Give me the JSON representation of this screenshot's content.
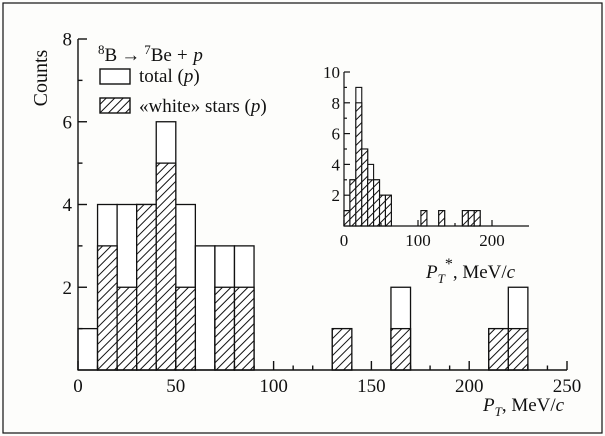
{
  "chart_data": [
    {
      "type": "histogram",
      "reaction": {
        "b_mass": "8",
        "b_sym": "B",
        "arrow": "→",
        "be_mass": "7",
        "be_sym": "Be",
        "plus_p": "+ p"
      },
      "ylabel": "Counts",
      "xlabel": {
        "var": "P",
        "sub": "T",
        "unit": ", MeV/",
        "c": "c"
      },
      "xlim": [
        0,
        250
      ],
      "ylim": [
        0,
        8
      ],
      "xticks": [
        "0",
        "50",
        "100",
        "150",
        "200",
        "250"
      ],
      "yticks": [
        "2",
        "4",
        "6",
        "8"
      ],
      "bin_width": 10,
      "bin_left_edges": [
        0,
        10,
        20,
        30,
        40,
        50,
        60,
        70,
        80,
        90,
        100,
        110,
        120,
        130,
        140,
        150,
        160,
        170,
        180,
        190,
        200,
        210,
        220
      ],
      "series": [
        {
          "name": "total (p)",
          "label_text": "total (",
          "label_italic": "p",
          "label_close": ")",
          "values": [
            1,
            4,
            4,
            4,
            6,
            4,
            3,
            3,
            3,
            0,
            0,
            0,
            0,
            1,
            0,
            0,
            2,
            0,
            0,
            0,
            0,
            1,
            2
          ]
        },
        {
          "name": "«white» stars (p)",
          "label_text": "«white» stars (",
          "label_italic": "p",
          "label_close": ")",
          "values": [
            0,
            3,
            2,
            4,
            5,
            2,
            0,
            2,
            2,
            0,
            0,
            0,
            0,
            1,
            0,
            0,
            1,
            0,
            0,
            0,
            0,
            1,
            1
          ]
        }
      ]
    },
    {
      "type": "histogram",
      "xlabel": {
        "var": "P",
        "sub": "T",
        "star": "*",
        "unit": ", MeV/",
        "c": "c"
      },
      "xlim": [
        0,
        250
      ],
      "ylim": [
        0,
        10
      ],
      "xticks": [
        "0",
        "100",
        "200"
      ],
      "yticks": [
        "2",
        "4",
        "6",
        "8",
        "10"
      ],
      "bin_width": 8,
      "bin_left_edges": [
        0,
        8,
        16,
        24,
        32,
        40,
        48,
        56,
        64,
        72,
        80,
        88,
        96,
        104,
        112,
        120,
        128,
        136,
        144,
        152,
        160,
        168,
        176,
        184,
        192
      ],
      "series": [
        {
          "name": "total",
          "values": [
            1,
            3,
            9,
            5,
            4,
            3,
            2,
            2,
            0,
            0,
            0,
            0,
            0,
            1,
            0,
            0,
            1,
            0,
            0,
            0,
            1,
            1,
            1,
            0,
            0
          ]
        },
        {
          "name": "white stars",
          "values": [
            1,
            3,
            8,
            5,
            3,
            3,
            2,
            2,
            0,
            0,
            0,
            0,
            0,
            1,
            0,
            0,
            1,
            0,
            0,
            0,
            1,
            1,
            1,
            0,
            0
          ]
        }
      ]
    }
  ]
}
